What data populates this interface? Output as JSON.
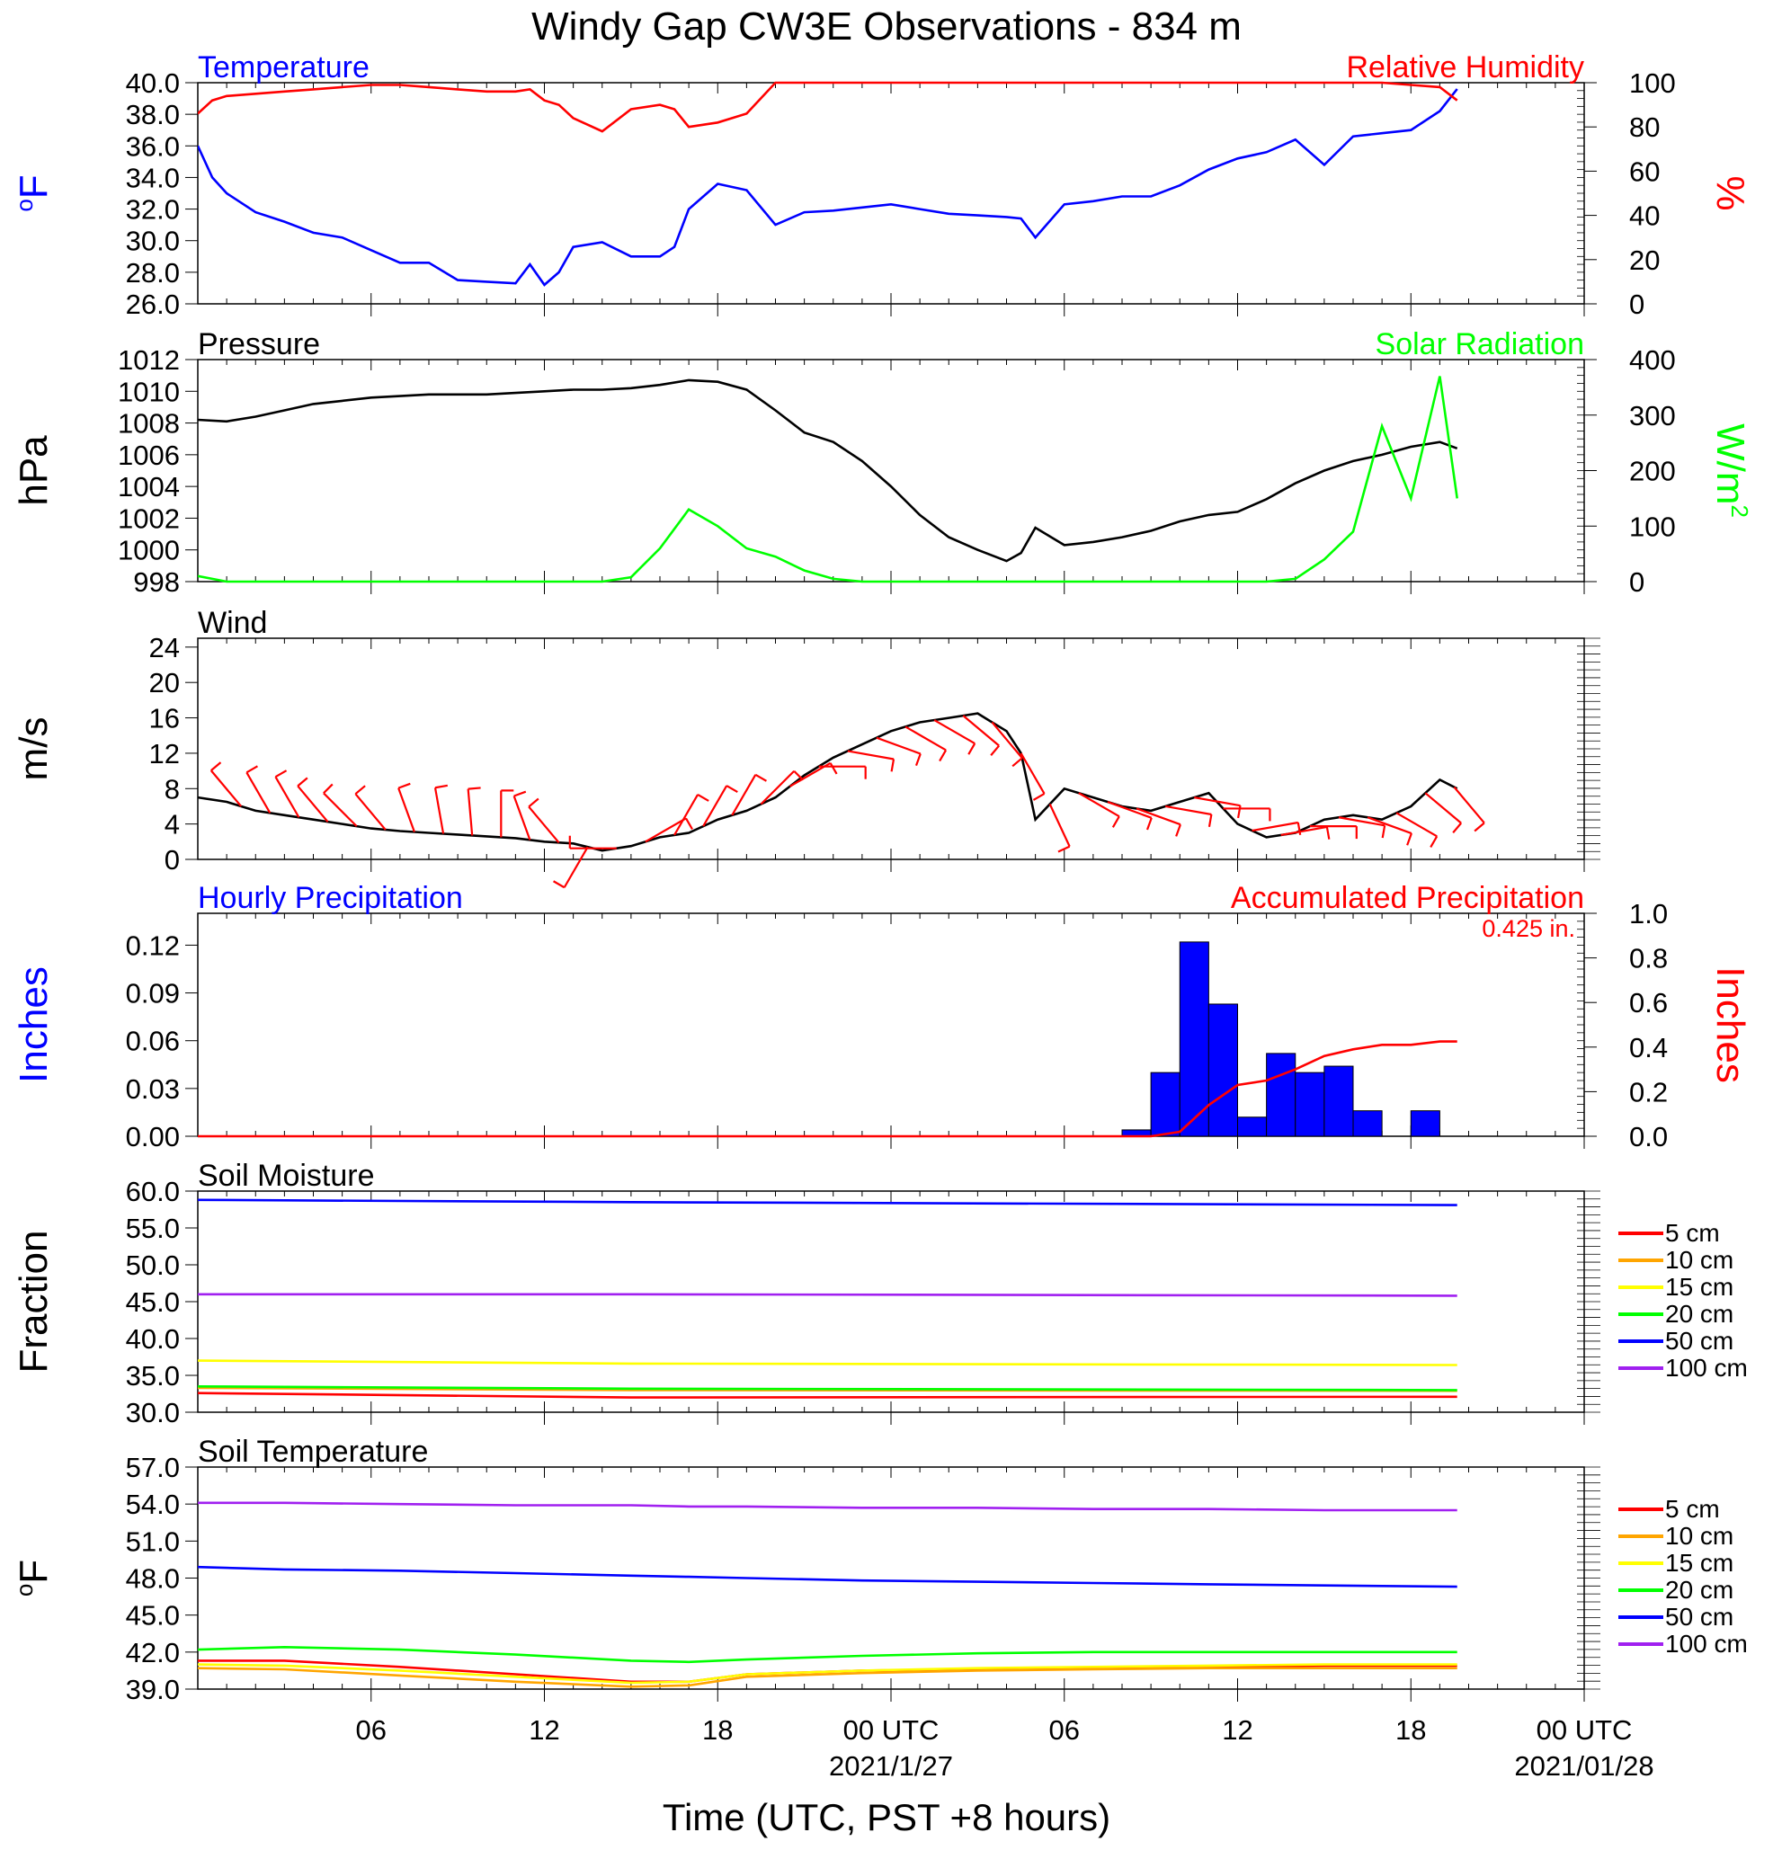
{
  "title": "Windy Gap CW3E Observations - 834 m",
  "xaxis": {
    "label": "Time (UTC, PST +8 hours)",
    "tick_labels": [
      "06",
      "12",
      "18",
      "00 UTC",
      "06",
      "12",
      "18",
      "00 UTC"
    ],
    "date_labels": [
      "2021/1/27",
      "2021/01/28"
    ]
  },
  "colors": {
    "blue": "#0000ff",
    "red": "#ff0000",
    "green": "#00ff00",
    "black": "#000000",
    "orange": "#ffa500",
    "yellow": "#ffff00",
    "purple": "#a020f0"
  },
  "chart_data": [
    {
      "type": "line",
      "title_left": "Temperature",
      "title_right": "Relative Humidity",
      "ylabel_left": "°F",
      "ylabel_right": "%",
      "ylim_left": [
        26,
        40
      ],
      "ylim_right": [
        0,
        100
      ],
      "yticks_left": [
        "26.0",
        "28.0",
        "30.0",
        "32.0",
        "34.0",
        "36.0",
        "38.0",
        "40.0"
      ],
      "yticks_right": [
        "0",
        "20",
        "40",
        "60",
        "80",
        "100"
      ],
      "x_hours": [
        1,
        1.5,
        2,
        3,
        4,
        5,
        6,
        7,
        8,
        9,
        10,
        11,
        12,
        12.5,
        13,
        13.5,
        14,
        15,
        16,
        17,
        17.5,
        18,
        19,
        20,
        21,
        22,
        23,
        24,
        25,
        26,
        27,
        28,
        29,
        29.5,
        30,
        31,
        32,
        33,
        34,
        35,
        36,
        37,
        38,
        39,
        40,
        41,
        42,
        43,
        44,
        44.6
      ],
      "series": [
        {
          "name": "Temperature",
          "axis": "left",
          "color": "#0000ff",
          "values": [
            36.0,
            34.0,
            33.0,
            31.8,
            31.2,
            30.5,
            30.2,
            29.4,
            28.6,
            28.6,
            27.5,
            27.4,
            27.3,
            28.5,
            27.2,
            28.0,
            29.6,
            29.9,
            29.0,
            29.0,
            29.6,
            32.0,
            33.6,
            33.2,
            31.0,
            31.8,
            31.9,
            32.1,
            32.3,
            32.0,
            31.7,
            31.6,
            31.5,
            31.4,
            30.2,
            32.3,
            32.5,
            32.8,
            32.8,
            33.5,
            34.5,
            35.2,
            35.6,
            36.4,
            34.8,
            36.6,
            36.8,
            37.0,
            38.2,
            39.6
          ]
        },
        {
          "name": "Relative Humidity",
          "axis": "right",
          "color": "#ff0000",
          "values": [
            86,
            92,
            94,
            95,
            96,
            97,
            98,
            99,
            99,
            98,
            97,
            96,
            96,
            97,
            92,
            90,
            84,
            78,
            88,
            90,
            88,
            80,
            82,
            86,
            100,
            100,
            100,
            100,
            100,
            100,
            100,
            100,
            100,
            100,
            100,
            100,
            100,
            100,
            100,
            100,
            100,
            100,
            100,
            100,
            100,
            100,
            100,
            99,
            98,
            92
          ]
        }
      ]
    },
    {
      "type": "line",
      "title_left": "Pressure",
      "title_right": "Solar Radiation",
      "ylabel_left": "hPa",
      "ylabel_right": "W/m",
      "ylabel_right_sup": "2",
      "ylim_left": [
        998,
        1012
      ],
      "ylim_right": [
        0,
        400
      ],
      "yticks_left": [
        "998",
        "1000",
        "1002",
        "1004",
        "1006",
        "1008",
        "1010",
        "1012"
      ],
      "yticks_right": [
        "0",
        "100",
        "200",
        "300",
        "400"
      ],
      "x_hours": [
        1,
        2,
        3,
        4,
        5,
        6,
        7,
        8,
        9,
        10,
        11,
        12,
        13,
        14,
        15,
        16,
        17,
        18,
        19,
        20,
        21,
        22,
        23,
        24,
        25,
        26,
        27,
        28,
        29,
        29.5,
        30,
        31,
        32,
        33,
        34,
        35,
        36,
        37,
        38,
        39,
        40,
        41,
        42,
        43,
        44,
        44.6
      ],
      "series": [
        {
          "name": "Pressure",
          "axis": "left",
          "color": "#000000",
          "values": [
            1008.2,
            1008.1,
            1008.4,
            1008.8,
            1009.2,
            1009.4,
            1009.6,
            1009.7,
            1009.8,
            1009.8,
            1009.8,
            1009.9,
            1010.0,
            1010.1,
            1010.1,
            1010.2,
            1010.4,
            1010.7,
            1010.6,
            1010.1,
            1008.8,
            1007.4,
            1006.8,
            1005.6,
            1004.0,
            1002.2,
            1000.8,
            1000.0,
            999.3,
            999.8,
            1001.4,
            1000.3,
            1000.5,
            1000.8,
            1001.2,
            1001.8,
            1002.2,
            1002.4,
            1003.2,
            1004.2,
            1005.0,
            1005.6,
            1006.0,
            1006.5,
            1006.8,
            1006.4
          ]
        },
        {
          "name": "Solar Radiation",
          "axis": "right",
          "color": "#00ff00",
          "values": [
            10,
            0,
            0,
            0,
            0,
            0,
            0,
            0,
            0,
            0,
            0,
            0,
            0,
            0,
            0,
            8,
            60,
            130,
            100,
            60,
            45,
            20,
            5,
            0,
            0,
            0,
            0,
            0,
            0,
            0,
            0,
            0,
            0,
            0,
            0,
            0,
            0,
            0,
            0,
            5,
            40,
            90,
            280,
            150,
            370,
            150
          ]
        }
      ]
    },
    {
      "type": "line",
      "title_left": "Wind",
      "ylabel_left": "m/s",
      "ylim_left": [
        0,
        25
      ],
      "yticks_left": [
        "0",
        "4",
        "8",
        "12",
        "16",
        "20",
        "24"
      ],
      "x_hours": [
        1,
        2,
        3,
        4,
        5,
        6,
        7,
        8,
        9,
        10,
        11,
        12,
        13,
        14,
        15,
        16,
        17,
        18,
        19,
        20,
        21,
        22,
        23,
        24,
        25,
        26,
        27,
        28,
        28.5,
        29,
        29.5,
        30,
        31,
        32,
        33,
        34,
        35,
        36,
        37,
        38,
        39,
        40,
        41,
        42,
        43,
        44,
        44.6
      ],
      "series": [
        {
          "name": "Wind Speed",
          "color": "#000000",
          "values": [
            7.0,
            6.5,
            5.5,
            5.0,
            4.5,
            4.0,
            3.5,
            3.2,
            3.0,
            2.8,
            2.6,
            2.4,
            2.0,
            1.8,
            1.0,
            1.5,
            2.5,
            3.0,
            4.5,
            5.5,
            7.0,
            9.5,
            11.5,
            13.0,
            14.5,
            15.5,
            16.0,
            16.5,
            15.5,
            14.5,
            12.0,
            4.5,
            8.0,
            7.0,
            6.0,
            5.5,
            6.5,
            7.5,
            4.0,
            2.5,
            3.0,
            4.5,
            5.0,
            4.5,
            6.0,
            9.0,
            8.0
          ]
        }
      ],
      "wind_barbs": {
        "color": "#ff0000",
        "x_hours": [
          2.5,
          3.5,
          4.5,
          5.5,
          6.5,
          7.5,
          8.5,
          9.5,
          10.5,
          11.5,
          12.5,
          13.5,
          14.5,
          15.5,
          16.5,
          17.5,
          18.5,
          19.5,
          20.5,
          21.5,
          22.5,
          23.5,
          24.5,
          25.5,
          26.5,
          27.5,
          28.5,
          29.5,
          30.5,
          31.5,
          32.5,
          33.5,
          34.5,
          35.5,
          36.5,
          37.5,
          38.5,
          39.5,
          40.5,
          41.5,
          42.5,
          43.5,
          44.5
        ],
        "directions_deg": [
          320,
          330,
          330,
          320,
          315,
          320,
          340,
          350,
          355,
          0,
          340,
          320,
          210,
          270,
          60,
          30,
          30,
          30,
          45,
          60,
          90,
          100,
          110,
          120,
          120,
          130,
          140,
          150,
          155,
          120,
          110,
          110,
          100,
          100,
          90,
          80,
          80,
          90,
          100,
          110,
          120,
          130,
          140
        ]
      }
    },
    {
      "type": "bar",
      "title_left": "Hourly Precipitation",
      "title_right": "Accumulated Precipitation",
      "annotation": "0.425 in.",
      "ylabel_left": "Inches",
      "ylabel_right": "Inches",
      "ylim_left": [
        0,
        0.14
      ],
      "ylim_right": [
        0,
        1.0
      ],
      "yticks_left": [
        "0.00",
        "0.03",
        "0.06",
        "0.09",
        "0.12"
      ],
      "yticks_right": [
        "0.0",
        "0.2",
        "0.4",
        "0.6",
        "0.8",
        "1.0"
      ],
      "bars": {
        "name": "Hourly Precipitation",
        "color": "#0000ff",
        "x_hours": [
          34,
          35,
          36,
          37,
          38,
          39,
          40,
          41,
          42,
          44
        ],
        "values": [
          0.004,
          0.04,
          0.122,
          0.083,
          0.012,
          0.052,
          0.04,
          0.044,
          0.016,
          0.016
        ]
      },
      "accumulated": {
        "name": "Accumulated Precipitation",
        "color": "#ff0000",
        "x_hours": [
          1,
          34,
          35,
          36,
          37,
          38,
          39,
          40,
          41,
          42,
          43,
          44,
          44.6
        ],
        "values": [
          0,
          0,
          0.02,
          0.14,
          0.23,
          0.25,
          0.3,
          0.36,
          0.39,
          0.41,
          0.41,
          0.425,
          0.425
        ]
      }
    },
    {
      "type": "line",
      "title_left": "Soil Moisture",
      "ylabel_left": "Fraction",
      "ylim_left": [
        30,
        60
      ],
      "yticks_left": [
        "30.0",
        "35.0",
        "40.0",
        "45.0",
        "50.0",
        "55.0",
        "60.0"
      ],
      "legend": [
        "5 cm",
        "10 cm",
        "15 cm",
        "20 cm",
        "50 cm",
        "100 cm"
      ],
      "x_hours": [
        1,
        16,
        44.6
      ],
      "series": [
        {
          "name": "5 cm",
          "color": "#ff0000",
          "values": [
            32.6,
            32.0,
            32.1
          ]
        },
        {
          "name": "10 cm",
          "color": "#ffa500",
          "values": [
            33.3,
            33.0,
            32.9
          ]
        },
        {
          "name": "15 cm",
          "color": "#ffff00",
          "values": [
            37.0,
            36.6,
            36.4
          ]
        },
        {
          "name": "20 cm",
          "color": "#00ff00",
          "values": [
            33.5,
            33.2,
            33.0
          ]
        },
        {
          "name": "50 cm",
          "color": "#0000ff",
          "values": [
            58.8,
            58.5,
            58.1
          ]
        },
        {
          "name": "100 cm",
          "color": "#a020f0",
          "values": [
            46.0,
            46.0,
            45.8
          ]
        }
      ]
    },
    {
      "type": "line",
      "title_left": "Soil Temperature",
      "ylabel_left": "°F",
      "ylim_left": [
        39,
        57
      ],
      "yticks_left": [
        "39.0",
        "42.0",
        "45.0",
        "48.0",
        "51.0",
        "54.0",
        "57.0"
      ],
      "legend": [
        "5 cm",
        "10 cm",
        "15 cm",
        "20 cm",
        "50 cm",
        "100 cm"
      ],
      "x_hours": [
        1,
        4,
        8,
        12,
        16,
        18,
        20,
        24,
        28,
        32,
        36,
        40,
        44.6
      ],
      "series": [
        {
          "name": "5 cm",
          "color": "#ff0000",
          "values": [
            41.3,
            41.3,
            40.8,
            40.2,
            39.6,
            39.6,
            40.2,
            40.5,
            40.6,
            40.7,
            40.8,
            40.9,
            40.9
          ]
        },
        {
          "name": "10 cm",
          "color": "#ffa500",
          "values": [
            40.7,
            40.6,
            40.1,
            39.6,
            39.2,
            39.3,
            40.0,
            40.3,
            40.5,
            40.6,
            40.7,
            40.7,
            40.7
          ]
        },
        {
          "name": "15 cm",
          "color": "#ffff00",
          "values": [
            41.0,
            40.9,
            40.5,
            40.0,
            39.5,
            39.6,
            40.2,
            40.5,
            40.7,
            40.8,
            40.9,
            41.0,
            41.0
          ]
        },
        {
          "name": "20 cm",
          "color": "#00ff00",
          "values": [
            42.2,
            42.4,
            42.2,
            41.8,
            41.3,
            41.2,
            41.4,
            41.7,
            41.9,
            42.0,
            42.0,
            42.0,
            42.0
          ]
        },
        {
          "name": "50 cm",
          "color": "#0000ff",
          "values": [
            48.9,
            48.7,
            48.6,
            48.4,
            48.2,
            48.1,
            48.0,
            47.8,
            47.7,
            47.6,
            47.5,
            47.4,
            47.3
          ]
        },
        {
          "name": "100 cm",
          "color": "#a020f0",
          "values": [
            54.1,
            54.1,
            54.0,
            53.9,
            53.9,
            53.8,
            53.8,
            53.7,
            53.7,
            53.6,
            53.6,
            53.5,
            53.5
          ]
        }
      ]
    }
  ]
}
